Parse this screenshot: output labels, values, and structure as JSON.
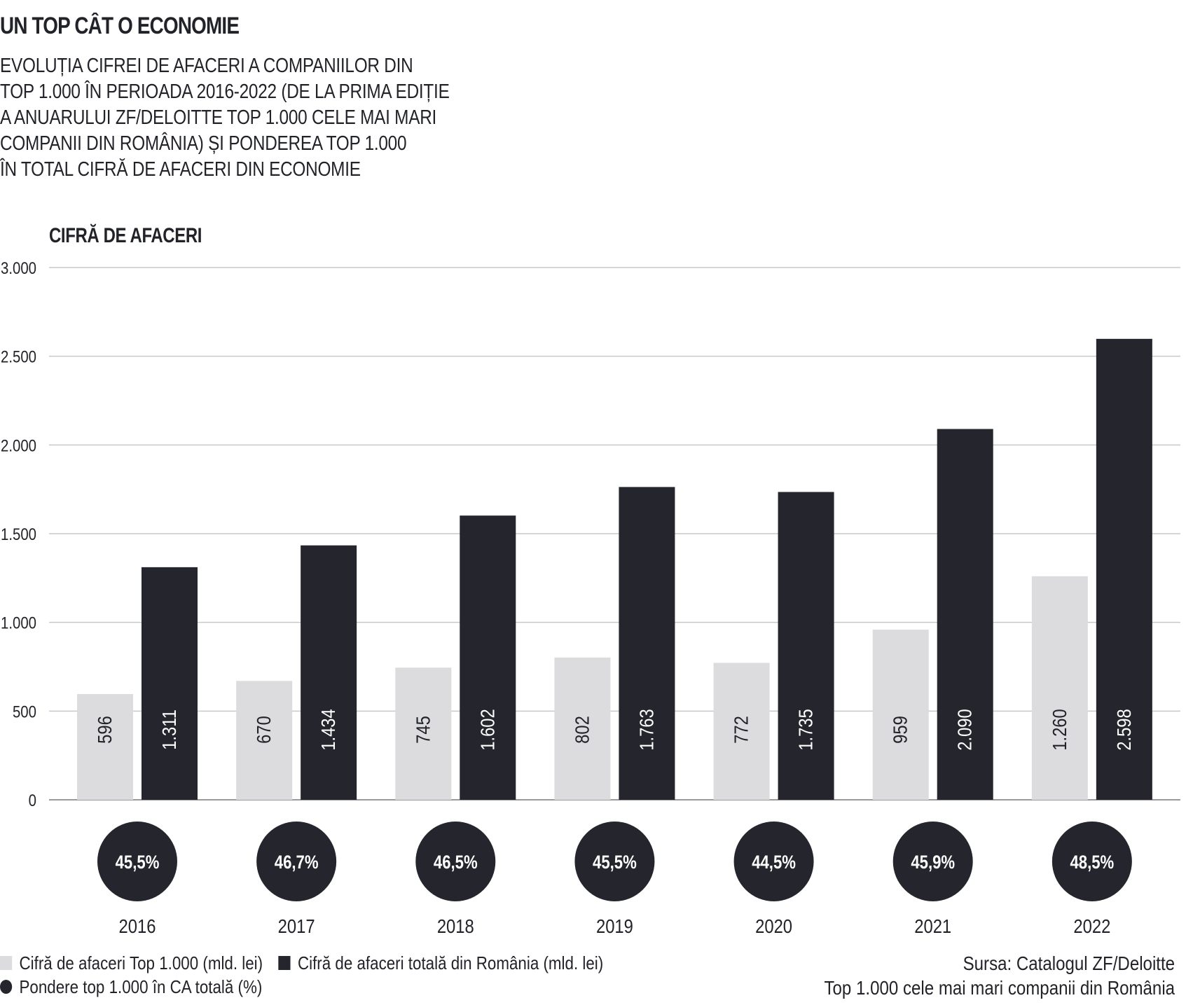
{
  "header": {
    "title": "UN TOP CÂT O ECONOMIE",
    "subtitle_lines": [
      "EVOLUȚIA CIFREI DE AFACERI A COMPANIILOR DIN",
      "TOP 1.000 ÎN PERIOADA 2016-2022 (DE LA PRIMA EDIȚIE",
      "A ANUARULUI ZF/DELOITTE TOP 1.000 CELE MAI MARI",
      "COMPANII DIN ROMÂNIA) ȘI PONDEREA TOP 1.000",
      "ÎN TOTAL CIFRĂ DE AFACERI DIN ECONOMIE"
    ]
  },
  "chart_data": {
    "type": "bar",
    "ylabel": "CIFRĂ DE AFACERI",
    "ylim": [
      0,
      3000
    ],
    "yticks": [
      0,
      500,
      1000,
      1500,
      2000,
      2500,
      3000
    ],
    "ytick_labels": [
      "0",
      "500",
      "1.000",
      "1.500",
      "2.000",
      "2.500",
      "3.000"
    ],
    "grid": true,
    "categories": [
      "2016",
      "2017",
      "2018",
      "2019",
      "2020",
      "2021",
      "2022"
    ],
    "series": [
      {
        "name": "Cifră de afaceri Top 1.000 (mld. lei)",
        "color": "#dcdcde",
        "label_color": "#222329",
        "values": [
          596,
          670,
          745,
          802,
          772,
          959,
          1260
        ],
        "labels": [
          "596",
          "670",
          "745",
          "802",
          "772",
          "959",
          "1.260"
        ]
      },
      {
        "name": "Cifră de afaceri totală din România (mld. lei)",
        "color": "#25262d",
        "label_color": "#ffffff",
        "values": [
          1311,
          1434,
          1602,
          1763,
          1735,
          2090,
          2598
        ],
        "labels": [
          "1.311",
          "1.434",
          "1.602",
          "1.763",
          "1.735",
          "2.090",
          "2.598"
        ]
      }
    ],
    "share": {
      "name": "Pondere top 1.000 în CA totală (%)",
      "color": "#25262d",
      "values": [
        45.5,
        46.7,
        46.5,
        45.5,
        44.5,
        45.9,
        48.5
      ],
      "labels": [
        "45,5%",
        "46,7%",
        "46,5%",
        "45,5%",
        "44,5%",
        "45,9%",
        "48,5%"
      ]
    },
    "legend_placement": "bottom-left"
  },
  "legend": {
    "item1": "Cifră de afaceri Top 1.000 (mld. lei)",
    "item2": "Cifră de afaceri totală din România (mld. lei)",
    "item3": "Pondere top 1.000 în CA totală (%)"
  },
  "source": {
    "line1": "Sursa: Catalogul ZF/Deloitte",
    "line2": "Top 1.000 cele mai mari companii din România"
  }
}
